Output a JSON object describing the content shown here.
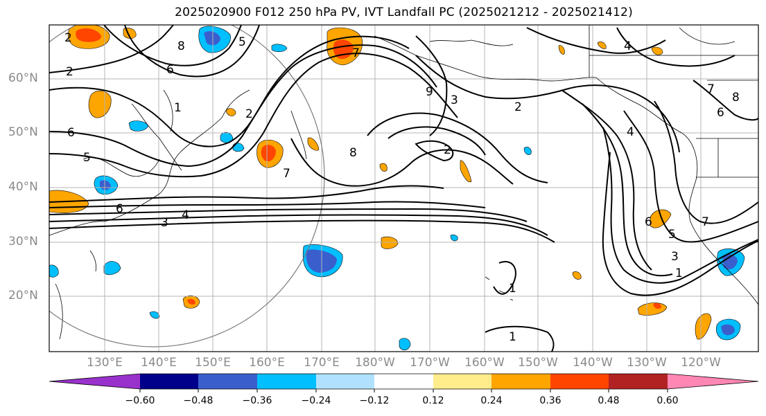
{
  "title": "2025020900 F012 250 hPa PV, IVT Landfall PC (2025021212 - 2025021412)",
  "map": {
    "lat_labels": [
      "60°N",
      "50°N",
      "40°N",
      "30°N",
      "20°N"
    ],
    "lon_labels": [
      "130°E",
      "140°E",
      "150°E",
      "160°E",
      "170°E",
      "180°W",
      "170°W",
      "160°W",
      "150°W",
      "140°W",
      "130°W",
      "120°W"
    ],
    "contour_labels": [
      "2",
      "8",
      "5",
      "6",
      "1",
      "2",
      "6",
      "5",
      "2",
      "6",
      "4",
      "3",
      "7",
      "8",
      "7",
      "2",
      "3",
      "9",
      "2",
      "4",
      "6",
      "5",
      "3",
      "1",
      "7",
      "8",
      "6",
      "7",
      "1",
      "1",
      "4"
    ],
    "colors": {
      "neg_strong": "#9932cc",
      "neg_navy": "#00008b",
      "neg_royal": "#3a5fcd",
      "neg_sky": "#00bfff",
      "neg_light": "#b0e2ff",
      "neutral": "#ffffff",
      "pos_yellow": "#ffec8b",
      "pos_orange": "#ffa500",
      "pos_red": "#ff4500",
      "pos_dark": "#b22222",
      "pos_pink": "#ff87b4"
    }
  },
  "colorbar": {
    "ticks": [
      "−0.60",
      "−0.48",
      "−0.36",
      "−0.24",
      "−0.12",
      "0.12",
      "0.24",
      "0.36",
      "0.48",
      "0.60"
    ],
    "bins": [
      "#9932cc",
      "#00008b",
      "#3a5fcd",
      "#00bfff",
      "#b0e2ff",
      "#ffffff",
      "#ffec8b",
      "#ffa500",
      "#ff4500",
      "#b22222",
      "#ff87b4"
    ]
  }
}
